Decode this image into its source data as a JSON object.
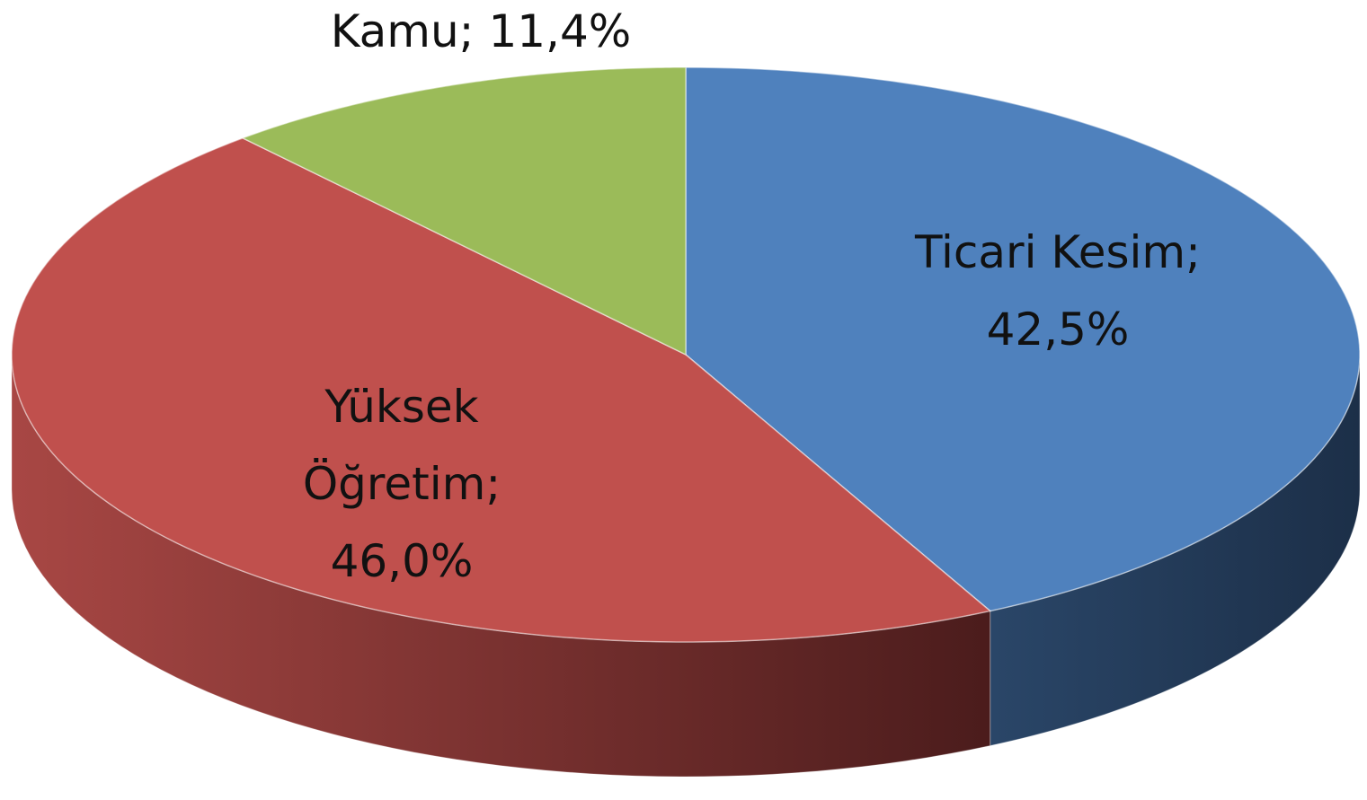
{
  "chart_data": {
    "type": "pie3d",
    "categories": [
      "Ticari Kesim",
      "Yüksek Öğretim",
      "Kamu"
    ],
    "values": [
      42.5,
      46.0,
      11.4
    ],
    "value_labels": [
      "42,5%",
      "46,0%",
      "11,4%"
    ],
    "label_separator": ";",
    "colors": [
      "#4f81bd",
      "#c0504d",
      "#9bbb59"
    ]
  }
}
